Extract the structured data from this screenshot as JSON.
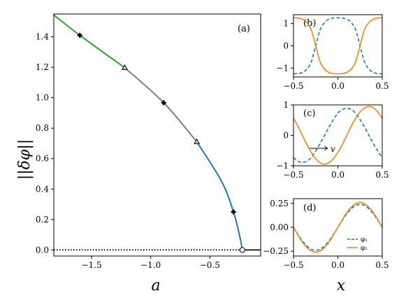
{
  "chart_data": [
    {
      "type": "line",
      "panel_label": "(a)",
      "xlabel": "a",
      "ylabel": "||δφ||",
      "xlim": [
        -1.82,
        -0.07
      ],
      "ylim": [
        -0.04,
        1.55
      ],
      "xticks": [
        -1.5,
        -1.0,
        -0.5
      ],
      "xtick_labels": [
        "−1.5",
        "−1.0",
        "−0.5"
      ],
      "yticks": [
        0.0,
        0.2,
        0.4,
        0.6,
        0.8,
        1.0,
        1.2,
        1.4
      ],
      "ytick_labels": [
        "0.0",
        "0.2",
        "0.4",
        "0.6",
        "0.8",
        "1.0",
        "1.2",
        "1.4"
      ],
      "grid": false,
      "branch_points": [
        {
          "a": -1.83,
          "y": 1.55
        },
        {
          "a": -1.6,
          "y": 1.41
        },
        {
          "a": -1.22,
          "y": 1.197
        },
        {
          "a": -0.89,
          "y": 0.967
        },
        {
          "a": -0.61,
          "y": 0.71
        },
        {
          "a": -0.4,
          "y": 0.45
        },
        {
          "a": -0.3,
          "y": 0.25
        },
        {
          "a": -0.25,
          "y": 0.1
        },
        {
          "a": -0.225,
          "y": 0.0
        }
      ],
      "segments": [
        {
          "color": "#2ca02c",
          "from_a": -1.83,
          "to_a": -1.22
        },
        {
          "color": "#7f7f7f",
          "from_a": -1.22,
          "to_a": -0.61
        },
        {
          "color": "#1f77b4",
          "from_a": -0.61,
          "to_a": -0.225
        }
      ],
      "trivial_branch": {
        "y": 0.0,
        "dotted_to_a": -0.225,
        "color": "#000000"
      },
      "plus_markers": [
        {
          "a": -1.6,
          "y": 1.41
        },
        {
          "a": -0.89,
          "y": 0.967
        },
        {
          "a": -0.3,
          "y": 0.25
        }
      ],
      "triangle_markers": [
        {
          "a": -1.22,
          "y": 1.197
        },
        {
          "a": -0.61,
          "y": 0.71
        }
      ],
      "circle_markers": [
        {
          "a": -0.225,
          "y": 0.0
        }
      ]
    },
    {
      "type": "line",
      "panel_label": "(b)",
      "xlim": [
        -0.5,
        0.5
      ],
      "ylim": [
        -1.4,
        1.4
      ],
      "yticks": [
        1,
        0,
        -1
      ],
      "ytick_labels": [
        "1",
        "0",
        "−1"
      ],
      "xticks": [
        -0.5,
        0.0,
        0.5
      ],
      "xtick_labels": [
        "−0.5",
        "0.0",
        "0.5"
      ],
      "series": [
        {
          "style": "dashed",
          "color": "#1f77b4",
          "x": [
            -0.5,
            -0.45,
            -0.4,
            -0.35,
            -0.3,
            -0.25,
            -0.2,
            -0.15,
            -0.1,
            -0.05,
            0.0,
            0.05,
            0.1,
            0.15,
            0.2,
            0.25,
            0.3,
            0.35,
            0.4,
            0.45,
            0.5
          ],
          "y": [
            -1.26,
            -1.25,
            -1.2,
            -1.05,
            -0.72,
            0.0,
            0.72,
            1.05,
            1.2,
            1.25,
            1.26,
            1.25,
            1.2,
            1.05,
            0.72,
            0.0,
            -0.72,
            -1.05,
            -1.2,
            -1.25,
            -1.26
          ]
        },
        {
          "style": "solid",
          "color": "#ff7f0e",
          "x": [
            -0.5,
            -0.45,
            -0.4,
            -0.35,
            -0.3,
            -0.25,
            -0.2,
            -0.15,
            -0.1,
            -0.05,
            0.0,
            0.05,
            0.1,
            0.15,
            0.2,
            0.25,
            0.3,
            0.35,
            0.4,
            0.45,
            0.5
          ],
          "y": [
            1.26,
            1.25,
            1.2,
            1.05,
            0.72,
            0.0,
            -0.72,
            -1.05,
            -1.2,
            -1.25,
            -1.26,
            -1.25,
            -1.2,
            -1.05,
            -0.72,
            0.0,
            0.72,
            1.05,
            1.2,
            1.25,
            1.26
          ]
        }
      ]
    },
    {
      "type": "line",
      "panel_label": "(c)",
      "xlim": [
        -0.5,
        0.5
      ],
      "ylim": [
        -1.0,
        1.0
      ],
      "yticks": [
        1,
        0,
        -1
      ],
      "ytick_labels": [
        "1",
        "0",
        "−1"
      ],
      "xticks": [
        -0.5,
        0.0,
        0.5
      ],
      "xtick_labels": [
        "−0.5",
        "0.0",
        "0.5"
      ],
      "arrow_label": "v",
      "series": [
        {
          "style": "dashed",
          "color": "#1f77b4",
          "x": [
            -0.5,
            -0.45,
            -0.4,
            -0.35,
            -0.3,
            -0.25,
            -0.2,
            -0.15,
            -0.1,
            -0.05,
            0.0,
            0.05,
            0.1,
            0.15,
            0.2,
            0.25,
            0.3,
            0.35,
            0.4,
            0.45,
            0.5
          ],
          "y": [
            -0.73,
            -0.85,
            -0.89,
            -0.85,
            -0.73,
            -0.52,
            -0.27,
            0.0,
            0.27,
            0.52,
            0.73,
            0.85,
            0.89,
            0.85,
            0.73,
            0.52,
            0.27,
            0.0,
            -0.27,
            -0.52,
            -0.73
          ]
        },
        {
          "style": "solid",
          "color": "#ff7f0e",
          "x": [
            -0.5,
            -0.45,
            -0.4,
            -0.35,
            -0.3,
            -0.25,
            -0.2,
            -0.15,
            -0.1,
            -0.05,
            0.0,
            0.05,
            0.1,
            0.15,
            0.2,
            0.25,
            0.3,
            0.35,
            0.4,
            0.45,
            0.5
          ],
          "y": [
            0.56,
            0.3,
            0.0,
            -0.3,
            -0.56,
            -0.77,
            -0.9,
            -0.95,
            -0.9,
            -0.77,
            -0.56,
            -0.3,
            0.0,
            0.3,
            0.56,
            0.77,
            0.9,
            0.95,
            0.9,
            0.77,
            0.56
          ]
        }
      ]
    },
    {
      "type": "line",
      "panel_label": "(d)",
      "xlim": [
        -0.5,
        0.5
      ],
      "ylim": [
        -0.3,
        0.3
      ],
      "yticks": [
        0.25,
        0.0,
        -0.25
      ],
      "ytick_labels": [
        "0.25",
        "0.00",
        "−0.25"
      ],
      "xticks": [
        -0.5,
        0.0,
        0.5
      ],
      "xtick_labels": [
        "−0.5",
        "0.0",
        "0.5"
      ],
      "xlabel": "x",
      "series": [
        {
          "name": "φ₁",
          "style": "dashed",
          "color": "#1f77b4",
          "x": [
            -0.5,
            -0.45,
            -0.4,
            -0.35,
            -0.3,
            -0.25,
            -0.2,
            -0.15,
            -0.1,
            -0.05,
            0.0,
            0.05,
            0.1,
            0.15,
            0.2,
            0.25,
            0.3,
            0.35,
            0.4,
            0.45,
            0.5
          ],
          "y": [
            0.0,
            -0.074,
            -0.141,
            -0.194,
            -0.228,
            -0.24,
            -0.228,
            -0.194,
            -0.141,
            -0.074,
            0.0,
            0.074,
            0.141,
            0.194,
            0.228,
            0.24,
            0.228,
            0.194,
            0.141,
            0.074,
            0.0
          ]
        },
        {
          "name": "φ₂",
          "style": "solid",
          "color": "#ff7f0e",
          "x": [
            -0.5,
            -0.45,
            -0.4,
            -0.35,
            -0.3,
            -0.25,
            -0.2,
            -0.15,
            -0.1,
            -0.05,
            0.0,
            0.05,
            0.1,
            0.15,
            0.2,
            0.25,
            0.3,
            0.35,
            0.4,
            0.45,
            0.5
          ],
          "y": [
            0.0,
            -0.08,
            -0.153,
            -0.21,
            -0.247,
            -0.26,
            -0.247,
            -0.21,
            -0.153,
            -0.08,
            0.0,
            0.08,
            0.153,
            0.21,
            0.247,
            0.26,
            0.247,
            0.21,
            0.153,
            0.08,
            0.0
          ]
        }
      ],
      "legend_position": "lower-right"
    }
  ]
}
